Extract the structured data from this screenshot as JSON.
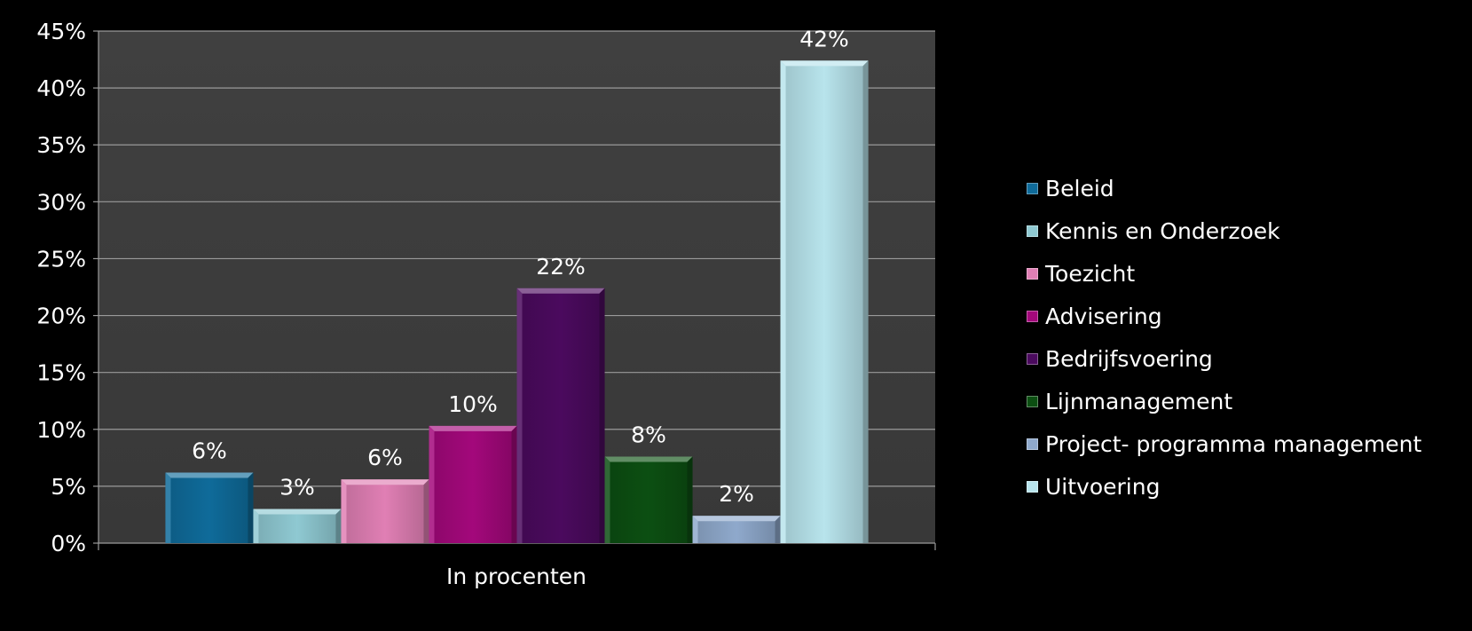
{
  "chart_data": {
    "type": "bar",
    "categories": [
      "In procenten"
    ],
    "xlabel": "",
    "ylabel": "",
    "ylim": [
      0,
      45
    ],
    "ytick_step": 5,
    "ytick_format": "{v}%",
    "grid": true,
    "legend_position": "right",
    "series": [
      {
        "name": "Beleid",
        "values": [
          6.2
        ],
        "label": "6%",
        "color": "#0f6b9a"
      },
      {
        "name": "Kennis en Onderzoek",
        "values": [
          3.0
        ],
        "label": "3%",
        "color": "#8fc9d2"
      },
      {
        "name": "Toezicht",
        "values": [
          5.6
        ],
        "label": "6%",
        "color": "#e07fb4"
      },
      {
        "name": "Advisering",
        "values": [
          10.3
        ],
        "label": "10%",
        "color": "#a3087b"
      },
      {
        "name": "Bedrijfsvoering",
        "values": [
          22.4
        ],
        "label": "22%",
        "color": "#4b0a5e"
      },
      {
        "name": "Lijnmanagement",
        "values": [
          7.6
        ],
        "label": "8%",
        "color": "#0c4f12"
      },
      {
        "name": "Project- programma management",
        "values": [
          2.4
        ],
        "label": "2%",
        "color": "#8fa9cc"
      },
      {
        "name": "Uitvoering",
        "values": [
          42.4
        ],
        "label": "42%",
        "color": "#b8e4ec"
      }
    ]
  }
}
